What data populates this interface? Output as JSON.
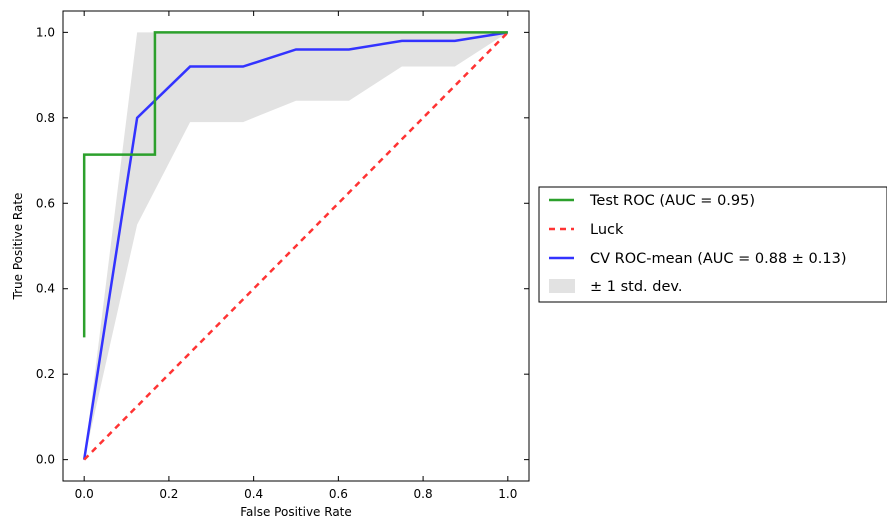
{
  "chart_data": {
    "type": "line",
    "xlabel": "False Positive Rate",
    "ylabel": "True Positive Rate",
    "xlim": [
      -0.05,
      1.05
    ],
    "ylim": [
      -0.05,
      1.05
    ],
    "xticks": [
      0.0,
      0.2,
      0.4,
      0.6,
      0.8,
      1.0
    ],
    "xtick_labels": [
      "0.0",
      "0.2",
      "0.4",
      "0.6",
      "0.8",
      "1.0"
    ],
    "yticks": [
      0.0,
      0.2,
      0.4,
      0.6,
      0.8,
      1.0
    ],
    "ytick_labels": [
      "0.0",
      "0.2",
      "0.4",
      "0.6",
      "0.8",
      "1.0"
    ],
    "grid": false,
    "legend_position": "right, outside plot area",
    "band": {
      "name": "± 1 std. dev.",
      "color": "#e2e2e2",
      "x": [
        0.0,
        0.125,
        0.25,
        0.375,
        0.5,
        0.625,
        0.75,
        0.875,
        1.0
      ],
      "upper": [
        0.0,
        1.0,
        1.0,
        1.0,
        1.0,
        1.0,
        1.0,
        1.0,
        1.0
      ],
      "lower": [
        0.0,
        0.55,
        0.79,
        0.79,
        0.84,
        0.84,
        0.92,
        0.92,
        1.0
      ]
    },
    "series": [
      {
        "name": "Test ROC (AUC = 0.95)",
        "color": "#2ca02c",
        "style": "solid",
        "x": [
          0.0,
          0.0,
          0.0,
          0.167,
          0.167,
          1.0
        ],
        "y": [
          0.286,
          0.714,
          0.714,
          0.714,
          1.0,
          1.0
        ]
      },
      {
        "name": "Luck",
        "color": "#ff3333",
        "style": "dashed",
        "x": [
          0.0,
          1.0
        ],
        "y": [
          0.0,
          1.0
        ]
      },
      {
        "name": "CV ROC-mean (AUC = 0.88 ± 0.13)",
        "color": "#3333ff",
        "style": "solid",
        "x": [
          0.0,
          0.125,
          0.25,
          0.375,
          0.5,
          0.625,
          0.75,
          0.875,
          1.0
        ],
        "y": [
          0.0,
          0.8,
          0.92,
          0.92,
          0.96,
          0.96,
          0.98,
          0.98,
          1.0
        ]
      }
    ]
  }
}
